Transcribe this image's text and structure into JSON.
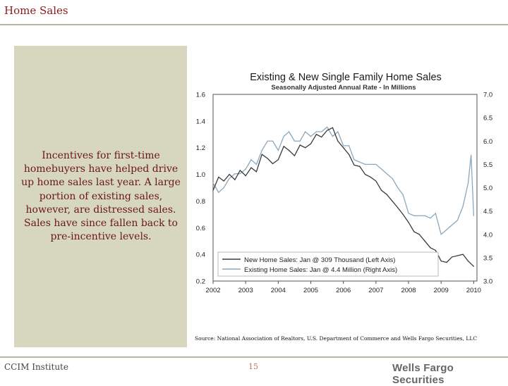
{
  "slide": {
    "title": "Home Sales",
    "body_text": "Incentives for first-time homebuyers have helped drive up home sales last year. A large portion of existing sales, however, are distressed sales. Sales have since fallen back to pre-incentive levels.",
    "source": "Source: National Association of Realtors, U.S. Department of Commerce and Wells Fargo Securities, LLC",
    "footer_left": "CCIM Institute",
    "page_number": "15",
    "footer_right": "Wells Fargo Securities"
  },
  "colors": {
    "title": "#8b1a1a",
    "panel": "#d7d7c0",
    "new_series": "#3a3a3a",
    "existing_series": "#8aa8bd"
  },
  "chart_data": {
    "type": "line",
    "title": "Existing & New Single Family Home Sales",
    "subtitle": "Seasonally Adjusted Annual Rate - In Millions",
    "x_ticks": [
      "2002",
      "2003",
      "2004",
      "2005",
      "2006",
      "2007",
      "2008",
      "2009",
      "2010"
    ],
    "x_range": [
      2002,
      2010.1
    ],
    "left_axis": {
      "ticks": [
        "0.2",
        "0.4",
        "0.6",
        "0.8",
        "1.0",
        "1.2",
        "1.4",
        "1.6"
      ],
      "ylim": [
        0.2,
        1.6
      ]
    },
    "right_axis": {
      "ticks": [
        "3.0",
        "3.5",
        "4.0",
        "4.5",
        "5.0",
        "5.5",
        "6.0",
        "6.5",
        "7.0"
      ],
      "ylim": [
        3.0,
        7.0
      ]
    },
    "legend": {
      "position": "bottom-right",
      "entries": [
        "New Home Sales: Jan @ 309 Thousand (Left Axis)",
        "Existing Home Sales: Jan @ 4.4 Million (Right Axis)"
      ]
    },
    "series": [
      {
        "name": "New Home Sales",
        "axis": "left",
        "x": [
          2002.0,
          2002.17,
          2002.33,
          2002.5,
          2002.67,
          2002.83,
          2003.0,
          2003.17,
          2003.33,
          2003.5,
          2003.67,
          2003.83,
          2004.0,
          2004.17,
          2004.33,
          2004.5,
          2004.67,
          2004.83,
          2005.0,
          2005.17,
          2005.33,
          2005.5,
          2005.67,
          2005.83,
          2006.0,
          2006.17,
          2006.33,
          2006.5,
          2006.67,
          2006.83,
          2007.0,
          2007.17,
          2007.33,
          2007.5,
          2007.67,
          2007.83,
          2008.0,
          2008.17,
          2008.33,
          2008.5,
          2008.67,
          2008.83,
          2009.0,
          2009.17,
          2009.33,
          2009.5,
          2009.67,
          2009.83,
          2010.0
        ],
        "values": [
          0.88,
          0.98,
          0.95,
          1.0,
          0.96,
          1.03,
          0.99,
          1.05,
          1.02,
          1.15,
          1.12,
          1.08,
          1.11,
          1.21,
          1.18,
          1.14,
          1.22,
          1.2,
          1.23,
          1.3,
          1.28,
          1.33,
          1.35,
          1.25,
          1.2,
          1.15,
          1.07,
          1.06,
          1.0,
          0.98,
          0.95,
          0.88,
          0.85,
          0.8,
          0.75,
          0.7,
          0.64,
          0.57,
          0.55,
          0.5,
          0.45,
          0.43,
          0.35,
          0.34,
          0.38,
          0.39,
          0.4,
          0.35,
          0.31
        ]
      },
      {
        "name": "Existing Home Sales",
        "axis": "right",
        "x": [
          2002.0,
          2002.17,
          2002.33,
          2002.5,
          2002.67,
          2002.83,
          2003.0,
          2003.17,
          2003.33,
          2003.5,
          2003.67,
          2003.83,
          2004.0,
          2004.17,
          2004.33,
          2004.5,
          2004.67,
          2004.83,
          2005.0,
          2005.17,
          2005.33,
          2005.5,
          2005.67,
          2005.83,
          2006.0,
          2006.17,
          2006.33,
          2006.5,
          2006.67,
          2006.83,
          2007.0,
          2007.17,
          2007.33,
          2007.5,
          2007.67,
          2007.83,
          2008.0,
          2008.17,
          2008.33,
          2008.5,
          2008.67,
          2008.83,
          2009.0,
          2009.17,
          2009.33,
          2009.5,
          2009.67,
          2009.83,
          2009.92,
          2010.0
        ],
        "values": [
          5.1,
          4.9,
          5.0,
          5.2,
          5.3,
          5.3,
          5.4,
          5.6,
          5.5,
          5.8,
          6.0,
          6.0,
          5.8,
          6.1,
          6.2,
          6.0,
          6.0,
          6.2,
          6.1,
          6.2,
          6.2,
          6.3,
          6.1,
          6.2,
          5.9,
          5.9,
          5.6,
          5.55,
          5.5,
          5.5,
          5.5,
          5.4,
          5.3,
          5.2,
          5.0,
          4.85,
          4.45,
          4.4,
          4.4,
          4.4,
          4.35,
          4.45,
          4.0,
          4.1,
          4.2,
          4.3,
          4.6,
          5.1,
          5.7,
          4.4
        ]
      }
    ]
  }
}
